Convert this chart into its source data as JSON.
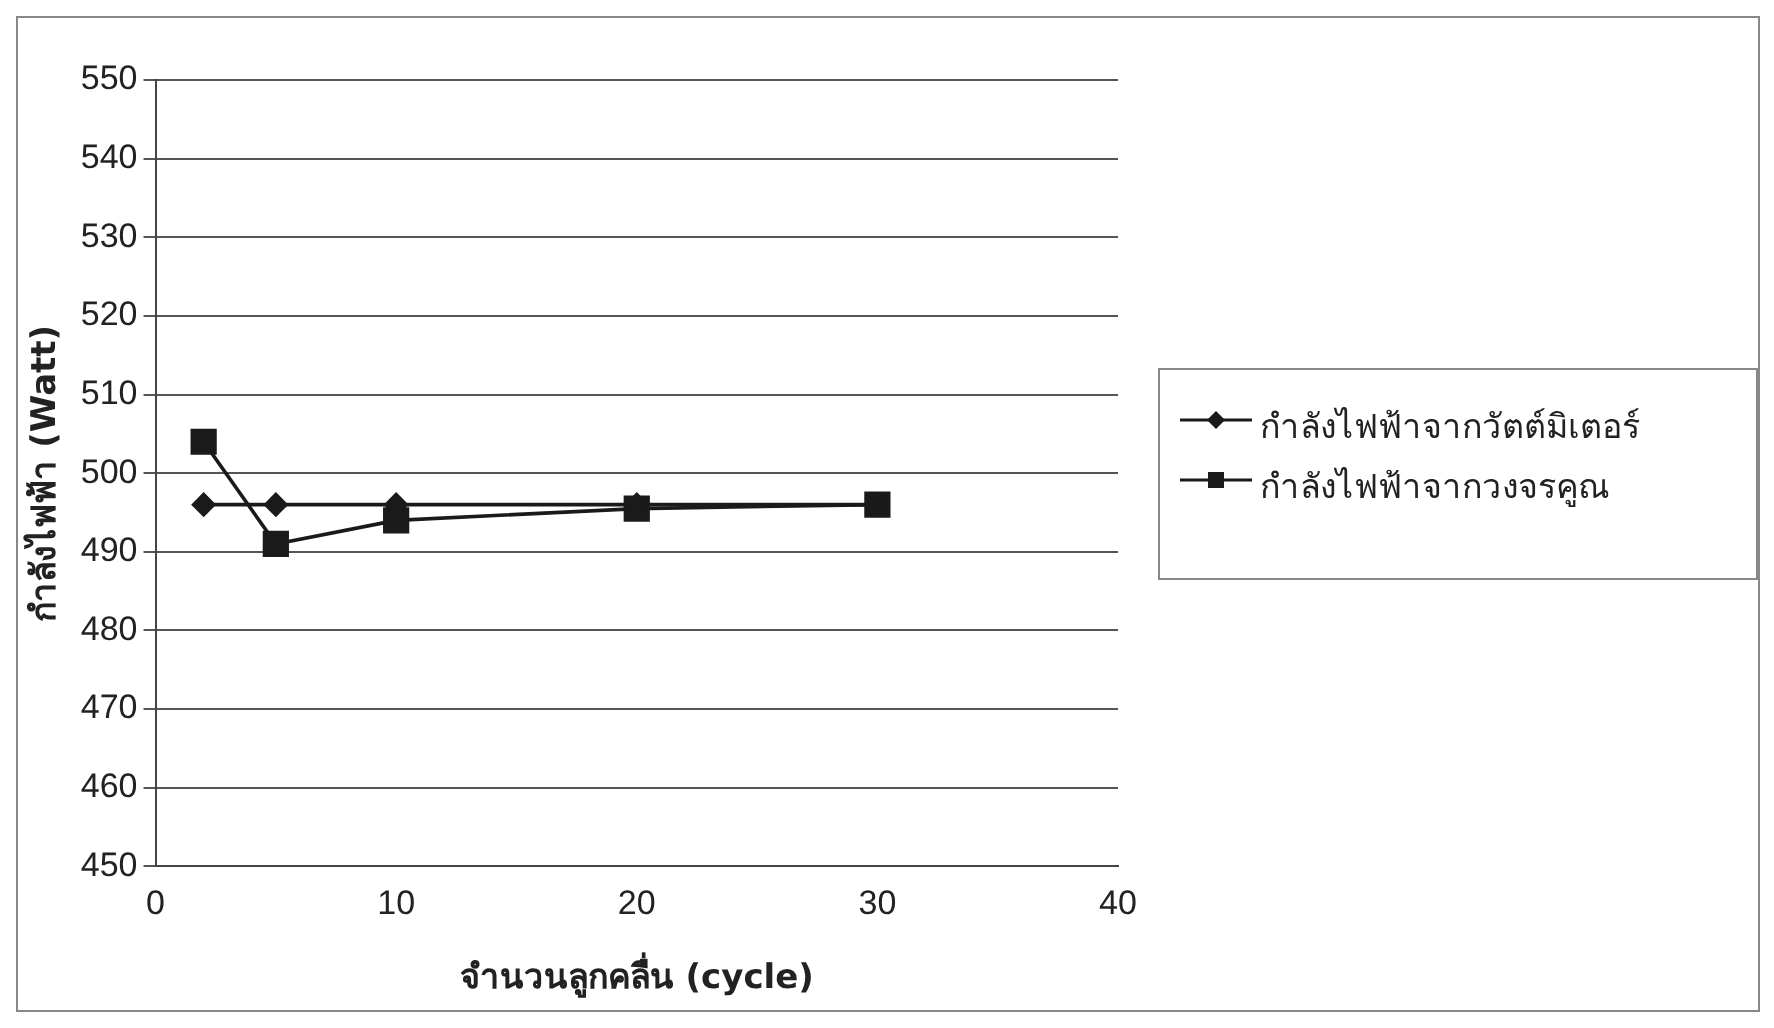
{
  "chart_data": {
    "type": "line",
    "xlabel": "จำนวนลูกคลื่น (cycle)",
    "ylabel": "กำลังไฟฟ้า (Watt)",
    "x": [
      2,
      5,
      10,
      20,
      30
    ],
    "series": [
      {
        "name": "กำลังไฟฟ้าจากวัตต์มิเตอร์",
        "color": "#1a1a1a",
        "marker": "diamond",
        "values": [
          496,
          496,
          496,
          496,
          496
        ]
      },
      {
        "name": "กำลังไฟฟ้าจากวงจรคูณ",
        "color": "#1a1a1a",
        "marker": "square",
        "values": [
          504,
          491,
          494,
          495.5,
          496
        ]
      }
    ],
    "xlim": [
      0,
      40
    ],
    "xticks": [
      0,
      10,
      20,
      30,
      40
    ],
    "ylim": [
      450,
      550
    ],
    "yticks": [
      450,
      460,
      470,
      480,
      490,
      500,
      510,
      520,
      530,
      540,
      550
    ],
    "grid": "y",
    "legend": "right",
    "line_style": "solid"
  }
}
